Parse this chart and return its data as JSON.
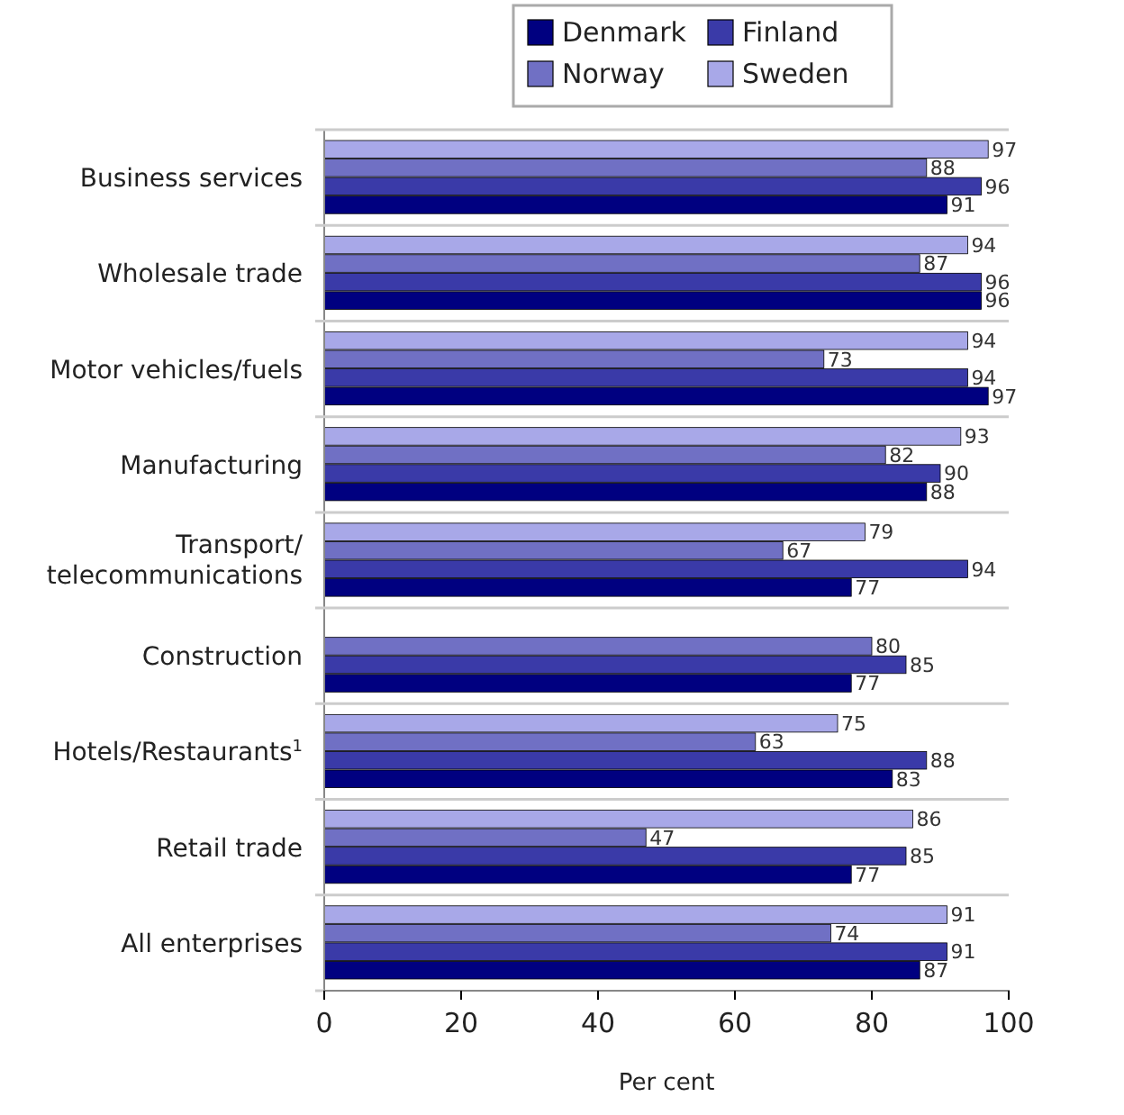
{
  "chart_data": {
    "type": "bar",
    "orientation": "horizontal",
    "xlabel": "Per cent",
    "categories": [
      "Business services",
      "Wholesale trade",
      "Motor vehicles/fuels",
      "Manufacturing",
      "Transport/telecommunications",
      "Construction",
      "Hotels/Restaurants$^{1}$",
      "Retail trade",
      "All enterprises"
    ],
    "series": [
      {
        "name": "Denmark",
        "color": "#000080",
        "values": [
          91,
          96,
          97,
          88,
          77,
          77,
          83,
          77,
          87
        ]
      },
      {
        "name": "Finland",
        "color": "#3a3aa8",
        "values": [
          96,
          96,
          94,
          90,
          94,
          85,
          88,
          85,
          91
        ]
      },
      {
        "name": "Norway",
        "color": "#7070c4",
        "values": [
          88,
          87,
          73,
          82,
          67,
          80,
          63,
          47,
          74
        ]
      },
      {
        "name": "Sweden",
        "color": "#a8a8e8",
        "values": [
          97,
          94,
          94,
          93,
          79,
          null,
          75,
          86,
          91
        ]
      }
    ],
    "xlim": [
      0,
      100
    ],
    "xticks": [
      0,
      20,
      40,
      60,
      80,
      100
    ],
    "data_labels": true,
    "legend": "top"
  }
}
